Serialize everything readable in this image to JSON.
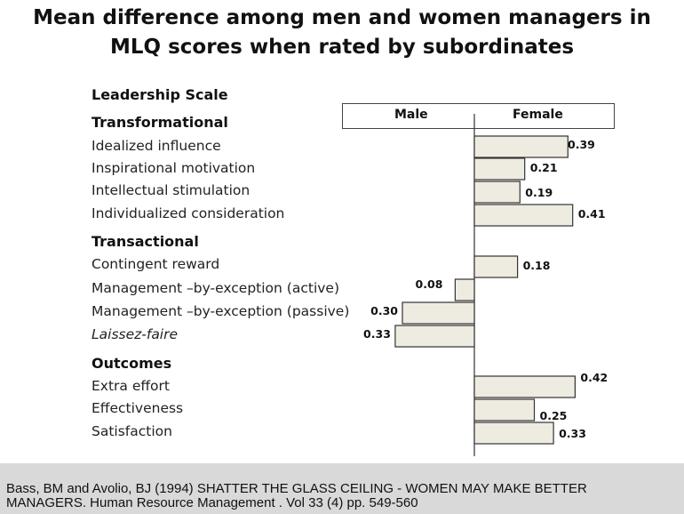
{
  "title_line1": "Mean difference among men and women managers in",
  "title_line2": "MLQ scores when rated by subordinates",
  "leadership_scale_label": "Leadership Scale",
  "header": {
    "male": "Male",
    "female": "Female"
  },
  "footer": {
    "line1": "Bass, BM and Avolio, BJ (1994) SHATTER THE GLASS CEILING - WOMEN MAY MAKE BETTER",
    "line2": "MANAGERS.  Human Resource Management .  Vol 33 (4) pp. 549-560"
  },
  "colors": {
    "bar_fill": "#eeece1",
    "bar_stroke": "#333333",
    "footer_bg": "#d9d9d9"
  },
  "chart_data": {
    "type": "bar",
    "orientation": "horizontal",
    "groups": [
      {
        "name": "Transformational",
        "rows": [
          {
            "label": "Idealized influence",
            "value": 0.39,
            "label_text": "0.39"
          },
          {
            "label": "Inspirational motivation",
            "value": 0.21,
            "label_text": "0.21"
          },
          {
            "label": "Intellectual stimulation",
            "value": 0.19,
            "label_text": "0.19"
          },
          {
            "label": "Individualized consideration",
            "value": 0.41,
            "label_text": "0.41"
          }
        ]
      },
      {
        "name": "Transactional",
        "rows": [
          {
            "label": "Contingent reward",
            "value": 0.18,
            "label_text": "0.18"
          },
          {
            "label": "Management –by-exception (active)",
            "value": -0.08,
            "label_text": "0.08"
          },
          {
            "label": "Management –by-exception (passive)",
            "value": -0.3,
            "label_text": "0.30"
          },
          {
            "label": "Laissez-faire",
            "value": -0.33,
            "label_text": "0.33",
            "italic": true
          }
        ]
      },
      {
        "name": "Outcomes",
        "rows": [
          {
            "label": "Extra effort",
            "value": 0.42,
            "label_text": "0.42"
          },
          {
            "label": "Effectiveness",
            "value": 0.25,
            "label_text": "0.25"
          },
          {
            "label": "Satisfaction",
            "value": 0.33,
            "label_text": "0.33"
          }
        ]
      }
    ]
  }
}
